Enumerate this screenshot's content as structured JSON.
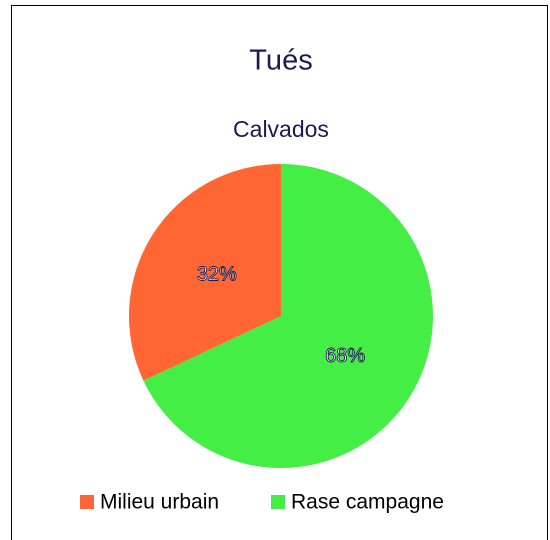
{
  "chart_data": {
    "type": "pie",
    "title": "Tués",
    "subtitle": "Calvados",
    "categories": [
      "Milieu urbain",
      "Rase campagne"
    ],
    "values": [
      32,
      68
    ],
    "value_labels": [
      "32%",
      "68%"
    ],
    "colors": [
      "#ff6633",
      "#44ee44"
    ],
    "legend": "bottom"
  }
}
